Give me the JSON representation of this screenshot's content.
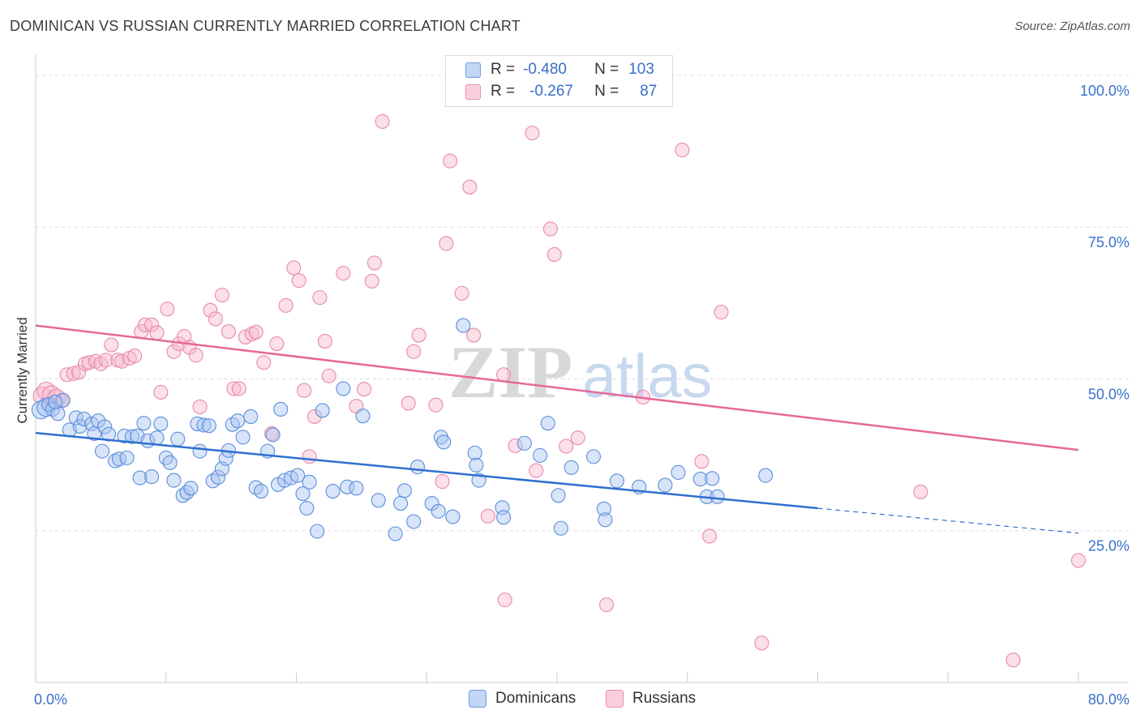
{
  "title": "DOMINICAN VS RUSSIAN CURRENTLY MARRIED CORRELATION CHART",
  "source": "Source: ZipAtlas.com",
  "legend": {
    "rows": [
      {
        "r_label": "R =",
        "r_value": "-0.480",
        "n_label": "N =",
        "n_value": "103",
        "color": "#a8c4f0",
        "border": "#6f9ae0"
      },
      {
        "r_label": "R =",
        "r_value": "-0.267",
        "n_label": "N =",
        "n_value": "87",
        "color": "#f7bfd2",
        "border": "#ec8aad"
      }
    ]
  },
  "bottom_legend": {
    "dominicans": "Dominicans",
    "russians": "Russians"
  },
  "colors": {
    "blue": "#5b8fdc",
    "blue_line": "#2f6fcf",
    "pink": "#e98aab",
    "pink_line": "#e5689a",
    "axis_label": "#3a6fc9"
  },
  "chart_data": {
    "type": "scatter",
    "title": "DOMINICAN VS RUSSIAN CURRENTLY MARRIED CORRELATION CHART",
    "xlabel": "",
    "ylabel": "Currently Married",
    "xlim": [
      0,
      80
    ],
    "ylim": [
      0,
      102
    ],
    "x_tick_labels": [
      "0.0%",
      "80.0%"
    ],
    "y_ticks": [
      25,
      50,
      75,
      100
    ],
    "y_tick_labels": [
      "25.0%",
      "50.0%",
      "75.0%",
      "100.0%"
    ],
    "grid": true,
    "legend_position": "top-center",
    "watermark": "ZIPatlas",
    "series": [
      {
        "name": "Dominicans",
        "r": -0.48,
        "n": 103,
        "trend": {
          "x": [
            0,
            60
          ],
          "y": [
            41.1,
            28.7
          ],
          "dashed_to": [
            80,
            24.6
          ]
        },
        "points": [
          [
            0.4,
            44.9
          ],
          [
            0.8,
            45.3
          ],
          [
            1.0,
            45.8
          ],
          [
            1.3,
            45.0
          ],
          [
            1.7,
            44.3
          ],
          [
            2.1,
            46.5
          ],
          [
            1.5,
            46.2
          ],
          [
            2.6,
            41.6
          ],
          [
            3.1,
            43.6
          ],
          [
            3.4,
            42.2
          ],
          [
            3.7,
            43.4
          ],
          [
            4.3,
            42.6
          ],
          [
            4.5,
            41.0
          ],
          [
            4.8,
            43.1
          ],
          [
            5.1,
            38.1
          ],
          [
            5.3,
            42.1
          ],
          [
            5.6,
            40.9
          ],
          [
            6.1,
            36.5
          ],
          [
            6.4,
            36.8
          ],
          [
            6.8,
            40.6
          ],
          [
            7.0,
            37.0
          ],
          [
            7.4,
            40.5
          ],
          [
            7.8,
            40.6
          ],
          [
            8.0,
            33.7
          ],
          [
            8.3,
            42.7
          ],
          [
            8.6,
            39.8
          ],
          [
            8.9,
            33.9
          ],
          [
            9.3,
            40.3
          ],
          [
            9.6,
            42.6
          ],
          [
            10.0,
            37.0
          ],
          [
            10.3,
            36.2
          ],
          [
            10.6,
            33.3
          ],
          [
            10.9,
            40.1
          ],
          [
            11.3,
            30.8
          ],
          [
            11.6,
            31.3
          ],
          [
            11.9,
            32.0
          ],
          [
            12.4,
            42.6
          ],
          [
            12.6,
            38.1
          ],
          [
            12.9,
            42.4
          ],
          [
            13.3,
            42.3
          ],
          [
            13.6,
            33.2
          ],
          [
            14.0,
            33.8
          ],
          [
            14.3,
            35.2
          ],
          [
            14.6,
            36.9
          ],
          [
            14.8,
            38.2
          ],
          [
            15.1,
            42.5
          ],
          [
            15.5,
            43.1
          ],
          [
            15.9,
            40.4
          ],
          [
            16.5,
            43.8
          ],
          [
            16.9,
            32.1
          ],
          [
            17.3,
            31.5
          ],
          [
            17.8,
            38.1
          ],
          [
            18.2,
            40.8
          ],
          [
            18.6,
            32.6
          ],
          [
            18.8,
            45.0
          ],
          [
            19.1,
            33.3
          ],
          [
            19.6,
            33.7
          ],
          [
            20.1,
            34.1
          ],
          [
            20.5,
            31.1
          ],
          [
            20.8,
            28.7
          ],
          [
            21.0,
            33.0
          ],
          [
            21.6,
            24.9
          ],
          [
            22.0,
            44.8
          ],
          [
            22.8,
            31.5
          ],
          [
            23.6,
            48.4
          ],
          [
            23.9,
            32.2
          ],
          [
            24.6,
            32.0
          ],
          [
            25.1,
            43.9
          ],
          [
            26.3,
            30.0
          ],
          [
            27.6,
            24.5
          ],
          [
            28.0,
            29.5
          ],
          [
            28.3,
            31.6
          ],
          [
            29.0,
            26.5
          ],
          [
            29.3,
            35.5
          ],
          [
            30.4,
            29.5
          ],
          [
            30.9,
            28.2
          ],
          [
            31.1,
            40.4
          ],
          [
            31.3,
            39.6
          ],
          [
            32.0,
            27.3
          ],
          [
            32.8,
            58.8
          ],
          [
            33.7,
            37.8
          ],
          [
            33.8,
            35.8
          ],
          [
            34.0,
            33.3
          ],
          [
            35.8,
            28.8
          ],
          [
            35.9,
            27.2
          ],
          [
            37.5,
            39.4
          ],
          [
            38.7,
            37.4
          ],
          [
            39.3,
            42.7
          ],
          [
            40.1,
            30.8
          ],
          [
            40.3,
            25.4
          ],
          [
            41.1,
            35.4
          ],
          [
            42.8,
            37.2
          ],
          [
            43.6,
            28.6
          ],
          [
            43.7,
            26.8
          ],
          [
            44.6,
            33.2
          ],
          [
            46.3,
            32.2
          ],
          [
            48.3,
            32.5
          ],
          [
            49.3,
            34.6
          ],
          [
            51.0,
            33.5
          ],
          [
            51.5,
            30.6
          ],
          [
            51.9,
            33.6
          ],
          [
            56.0,
            34.1
          ],
          [
            52.3,
            30.6
          ]
        ]
      },
      {
        "name": "Russians",
        "r": -0.267,
        "n": 87,
        "trend": {
          "x": [
            0,
            80
          ],
          "y": [
            58.8,
            38.3
          ]
        },
        "points": [
          [
            0.5,
            47.2
          ],
          [
            0.8,
            48.0
          ],
          [
            1.2,
            47.4
          ],
          [
            1.6,
            46.8
          ],
          [
            2.0,
            46.4
          ],
          [
            2.4,
            50.7
          ],
          [
            2.9,
            50.9
          ],
          [
            3.3,
            51.1
          ],
          [
            3.8,
            52.5
          ],
          [
            4.1,
            52.7
          ],
          [
            4.6,
            52.9
          ],
          [
            5.0,
            52.5
          ],
          [
            5.4,
            53.1
          ],
          [
            5.8,
            55.6
          ],
          [
            6.3,
            53.1
          ],
          [
            6.6,
            52.9
          ],
          [
            7.2,
            53.4
          ],
          [
            7.6,
            53.8
          ],
          [
            8.1,
            57.8
          ],
          [
            8.4,
            58.9
          ],
          [
            8.9,
            58.9
          ],
          [
            9.3,
            57.6
          ],
          [
            9.6,
            47.8
          ],
          [
            10.1,
            61.5
          ],
          [
            10.6,
            54.5
          ],
          [
            11.0,
            55.8
          ],
          [
            11.4,
            57.0
          ],
          [
            11.8,
            55.2
          ],
          [
            12.3,
            53.9
          ],
          [
            12.6,
            45.4
          ],
          [
            13.4,
            61.3
          ],
          [
            13.8,
            59.9
          ],
          [
            14.3,
            63.8
          ],
          [
            14.8,
            57.8
          ],
          [
            15.2,
            48.4
          ],
          [
            15.6,
            48.4
          ],
          [
            16.1,
            56.9
          ],
          [
            16.6,
            57.4
          ],
          [
            16.9,
            57.7
          ],
          [
            17.5,
            52.7
          ],
          [
            18.1,
            41.0
          ],
          [
            18.5,
            55.8
          ],
          [
            19.2,
            62.1
          ],
          [
            19.8,
            68.3
          ],
          [
            20.2,
            66.2
          ],
          [
            20.6,
            48.1
          ],
          [
            21.0,
            37.2
          ],
          [
            21.4,
            43.8
          ],
          [
            21.8,
            63.4
          ],
          [
            22.2,
            56.2
          ],
          [
            22.5,
            50.5
          ],
          [
            23.6,
            67.4
          ],
          [
            24.6,
            45.5
          ],
          [
            25.2,
            48.3
          ],
          [
            25.8,
            66.1
          ],
          [
            26.0,
            69.1
          ],
          [
            26.6,
            92.4
          ],
          [
            28.6,
            46.0
          ],
          [
            29.0,
            54.5
          ],
          [
            29.4,
            57.2
          ],
          [
            30.7,
            45.7
          ],
          [
            31.2,
            33.1
          ],
          [
            31.5,
            72.3
          ],
          [
            31.8,
            85.9
          ],
          [
            32.7,
            64.1
          ],
          [
            33.3,
            81.6
          ],
          [
            33.6,
            57.2
          ],
          [
            34.7,
            27.4
          ],
          [
            35.9,
            50.7
          ],
          [
            36.0,
            13.6
          ],
          [
            36.8,
            39.0
          ],
          [
            38.1,
            90.5
          ],
          [
            38.4,
            34.9
          ],
          [
            39.5,
            74.7
          ],
          [
            39.8,
            70.5
          ],
          [
            40.7,
            38.9
          ],
          [
            41.6,
            40.3
          ],
          [
            43.8,
            12.8
          ],
          [
            46.6,
            47.0
          ],
          [
            49.6,
            87.7
          ],
          [
            51.1,
            36.4
          ],
          [
            51.7,
            24.1
          ],
          [
            52.6,
            61.0
          ],
          [
            55.7,
            6.5
          ],
          [
            67.9,
            31.4
          ],
          [
            75.0,
            3.7
          ],
          [
            80.0,
            20.1
          ]
        ]
      }
    ]
  }
}
